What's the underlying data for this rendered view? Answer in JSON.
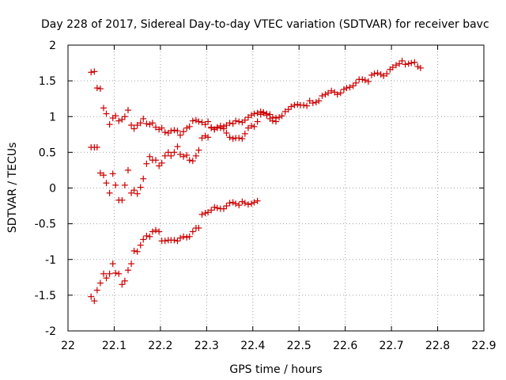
{
  "chart_data": {
    "type": "scatter",
    "title": "Day 228 of 2017, Sidereal Day-to-day VTEC variation (SDTVAR) for receiver bavc",
    "xlabel": "GPS time / hours",
    "ylabel": "SDTVAR / TECUs",
    "xlim": [
      22,
      22.9
    ],
    "ylim": [
      -2,
      2
    ],
    "xticks": [
      "22",
      "22.1",
      "22.2",
      "22.3",
      "22.4",
      "22.5",
      "22.6",
      "22.7",
      "22.8",
      "22.9"
    ],
    "yticks": [
      "-2",
      "-1.5",
      "-1",
      "-0.5",
      "0",
      "0.5",
      "1",
      "1.5",
      "2"
    ],
    "grid": true,
    "marker": "+",
    "color": "#cc0000",
    "series": [
      {
        "name": "upper",
        "points": [
          [
            22.05,
            1.62
          ],
          [
            22.057,
            1.63
          ],
          [
            22.063,
            1.4
          ],
          [
            22.07,
            1.39
          ],
          [
            22.077,
            1.12
          ],
          [
            22.083,
            1.04
          ],
          [
            22.09,
            0.89
          ],
          [
            22.097,
            0.98
          ],
          [
            22.103,
            1.01
          ],
          [
            22.11,
            0.94
          ],
          [
            22.117,
            0.96
          ],
          [
            22.123,
            1.0
          ],
          [
            22.13,
            1.09
          ],
          [
            22.137,
            0.88
          ],
          [
            22.143,
            0.83
          ],
          [
            22.15,
            0.88
          ],
          [
            22.157,
            0.91
          ],
          [
            22.163,
            0.97
          ],
          [
            22.17,
            0.9
          ],
          [
            22.177,
            0.89
          ],
          [
            22.183,
            0.91
          ],
          [
            22.19,
            0.85
          ],
          [
            22.197,
            0.82
          ],
          [
            22.203,
            0.84
          ],
          [
            22.21,
            0.78
          ],
          [
            22.217,
            0.77
          ],
          [
            22.223,
            0.8
          ],
          [
            22.23,
            0.81
          ],
          [
            22.237,
            0.8
          ],
          [
            22.243,
            0.74
          ],
          [
            22.25,
            0.79
          ],
          [
            22.257,
            0.84
          ],
          [
            22.263,
            0.86
          ],
          [
            22.27,
            0.94
          ],
          [
            22.277,
            0.95
          ],
          [
            22.283,
            0.93
          ],
          [
            22.29,
            0.92
          ],
          [
            22.297,
            0.89
          ],
          [
            22.303,
            0.93
          ],
          [
            22.31,
            0.85
          ],
          [
            22.317,
            0.82
          ],
          [
            22.323,
            0.84
          ],
          [
            22.33,
            0.84
          ],
          [
            22.337,
            0.86
          ],
          [
            22.343,
            0.88
          ],
          [
            22.35,
            0.91
          ],
          [
            22.357,
            0.9
          ],
          [
            22.363,
            0.94
          ],
          [
            22.37,
            0.93
          ],
          [
            22.377,
            0.92
          ],
          [
            22.383,
            0.95
          ],
          [
            22.39,
            0.99
          ],
          [
            22.397,
            1.02
          ],
          [
            22.403,
            1.04
          ],
          [
            22.41,
            1.05
          ],
          [
            22.417,
            1.07
          ],
          [
            22.423,
            1.06
          ],
          [
            22.43,
            1.04
          ],
          [
            22.437,
            1.03
          ],
          [
            22.443,
            0.99
          ],
          [
            22.45,
            0.98
          ],
          [
            22.457,
            0.99
          ],
          [
            22.463,
            1.01
          ],
          [
            22.47,
            1.07
          ],
          [
            22.477,
            1.1
          ],
          [
            22.483,
            1.14
          ],
          [
            22.49,
            1.16
          ],
          [
            22.497,
            1.17
          ],
          [
            22.503,
            1.16
          ],
          [
            22.51,
            1.16
          ],
          [
            22.517,
            1.15
          ],
          [
            22.523,
            1.22
          ],
          [
            22.53,
            1.19
          ],
          [
            22.537,
            1.2
          ],
          [
            22.543,
            1.22
          ],
          [
            22.55,
            1.29
          ],
          [
            22.557,
            1.31
          ],
          [
            22.563,
            1.33
          ],
          [
            22.57,
            1.36
          ],
          [
            22.577,
            1.34
          ],
          [
            22.583,
            1.31
          ],
          [
            22.59,
            1.33
          ],
          [
            22.597,
            1.38
          ],
          [
            22.603,
            1.4
          ],
          [
            22.61,
            1.41
          ],
          [
            22.617,
            1.43
          ],
          [
            22.623,
            1.47
          ],
          [
            22.63,
            1.52
          ],
          [
            22.637,
            1.52
          ],
          [
            22.643,
            1.51
          ],
          [
            22.65,
            1.49
          ],
          [
            22.657,
            1.58
          ],
          [
            22.663,
            1.6
          ],
          [
            22.67,
            1.61
          ],
          [
            22.677,
            1.59
          ],
          [
            22.683,
            1.57
          ],
          [
            22.69,
            1.6
          ],
          [
            22.697,
            1.66
          ],
          [
            22.703,
            1.69
          ],
          [
            22.71,
            1.72
          ],
          [
            22.717,
            1.74
          ],
          [
            22.723,
            1.78
          ],
          [
            22.73,
            1.73
          ],
          [
            22.737,
            1.74
          ],
          [
            22.743,
            1.75
          ],
          [
            22.75,
            1.76
          ],
          [
            22.757,
            1.7
          ],
          [
            22.763,
            1.68
          ]
        ]
      },
      {
        "name": "middle",
        "points": [
          [
            22.05,
            0.57
          ],
          [
            22.057,
            0.57
          ],
          [
            22.063,
            0.57
          ],
          [
            22.07,
            0.21
          ],
          [
            22.077,
            0.18
          ],
          [
            22.083,
            0.07
          ],
          [
            22.09,
            -0.07
          ],
          [
            22.097,
            0.2
          ],
          [
            22.103,
            0.04
          ],
          [
            22.11,
            -0.17
          ],
          [
            22.117,
            -0.17
          ],
          [
            22.123,
            0.04
          ],
          [
            22.13,
            0.25
          ],
          [
            22.137,
            -0.07
          ],
          [
            22.143,
            -0.03
          ],
          [
            22.15,
            -0.08
          ],
          [
            22.157,
            0.01
          ],
          [
            22.163,
            0.13
          ],
          [
            22.17,
            0.34
          ],
          [
            22.177,
            0.44
          ],
          [
            22.183,
            0.39
          ],
          [
            22.19,
            0.39
          ],
          [
            22.197,
            0.31
          ],
          [
            22.203,
            0.35
          ],
          [
            22.21,
            0.45
          ],
          [
            22.217,
            0.5
          ],
          [
            22.223,
            0.45
          ],
          [
            22.23,
            0.5
          ],
          [
            22.237,
            0.58
          ],
          [
            22.243,
            0.47
          ],
          [
            22.25,
            0.44
          ],
          [
            22.257,
            0.46
          ],
          [
            22.263,
            0.39
          ],
          [
            22.27,
            0.38
          ],
          [
            22.277,
            0.45
          ],
          [
            22.283,
            0.53
          ],
          [
            22.29,
            0.7
          ],
          [
            22.297,
            0.73
          ],
          [
            22.303,
            0.71
          ],
          [
            22.31,
            0.84
          ],
          [
            22.317,
            0.82
          ],
          [
            22.323,
            0.85
          ],
          [
            22.33,
            0.87
          ],
          [
            22.337,
            0.83
          ],
          [
            22.343,
            0.77
          ],
          [
            22.35,
            0.71
          ],
          [
            22.357,
            0.69
          ],
          [
            22.363,
            0.7
          ],
          [
            22.37,
            0.7
          ],
          [
            22.377,
            0.69
          ],
          [
            22.383,
            0.76
          ],
          [
            22.39,
            0.84
          ],
          [
            22.397,
            0.87
          ],
          [
            22.403,
            0.86
          ],
          [
            22.41,
            0.93
          ],
          [
            22.417,
            1.03
          ],
          [
            22.423,
            1.05
          ],
          [
            22.43,
            1.02
          ],
          [
            22.437,
            0.97
          ],
          [
            22.443,
            0.94
          ],
          [
            22.45,
            0.93
          ]
        ]
      },
      {
        "name": "lower",
        "points": [
          [
            22.05,
            -1.52
          ],
          [
            22.057,
            -1.58
          ],
          [
            22.063,
            -1.43
          ],
          [
            22.07,
            -1.33
          ],
          [
            22.077,
            -1.2
          ],
          [
            22.083,
            -1.26
          ],
          [
            22.09,
            -1.2
          ],
          [
            22.097,
            -1.06
          ],
          [
            22.103,
            -1.19
          ],
          [
            22.11,
            -1.2
          ],
          [
            22.117,
            -1.35
          ],
          [
            22.123,
            -1.3
          ],
          [
            22.13,
            -1.15
          ],
          [
            22.137,
            -1.06
          ],
          [
            22.143,
            -0.88
          ],
          [
            22.15,
            -0.89
          ],
          [
            22.157,
            -0.8
          ],
          [
            22.163,
            -0.72
          ],
          [
            22.17,
            -0.67
          ],
          [
            22.177,
            -0.68
          ],
          [
            22.183,
            -0.61
          ],
          [
            22.19,
            -0.59
          ],
          [
            22.197,
            -0.61
          ],
          [
            22.203,
            -0.74
          ],
          [
            22.21,
            -0.74
          ],
          [
            22.217,
            -0.73
          ],
          [
            22.223,
            -0.73
          ],
          [
            22.23,
            -0.73
          ],
          [
            22.237,
            -0.74
          ],
          [
            22.243,
            -0.7
          ],
          [
            22.25,
            -0.68
          ],
          [
            22.257,
            -0.69
          ],
          [
            22.263,
            -0.68
          ],
          [
            22.27,
            -0.61
          ],
          [
            22.277,
            -0.56
          ],
          [
            22.283,
            -0.56
          ],
          [
            22.29,
            -0.37
          ],
          [
            22.297,
            -0.35
          ],
          [
            22.303,
            -0.34
          ],
          [
            22.31,
            -0.31
          ],
          [
            22.317,
            -0.27
          ],
          [
            22.323,
            -0.28
          ],
          [
            22.33,
            -0.29
          ],
          [
            22.337,
            -0.29
          ],
          [
            22.343,
            -0.25
          ],
          [
            22.35,
            -0.21
          ],
          [
            22.357,
            -0.2
          ],
          [
            22.363,
            -0.22
          ],
          [
            22.37,
            -0.24
          ],
          [
            22.377,
            -0.19
          ],
          [
            22.383,
            -0.21
          ],
          [
            22.39,
            -0.23
          ],
          [
            22.397,
            -0.22
          ],
          [
            22.403,
            -0.2
          ],
          [
            22.41,
            -0.18
          ]
        ]
      }
    ]
  }
}
